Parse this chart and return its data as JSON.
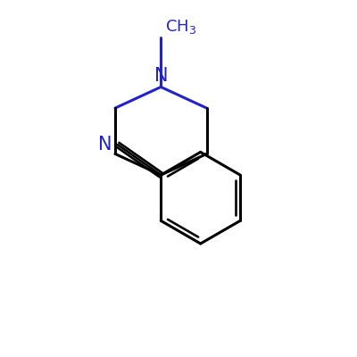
{
  "background_color": "#ffffff",
  "bond_color": "#000000",
  "n_color": "#2222cc",
  "line_width": 2.2,
  "font_size": 15,
  "ch3_fontsize": 13
}
